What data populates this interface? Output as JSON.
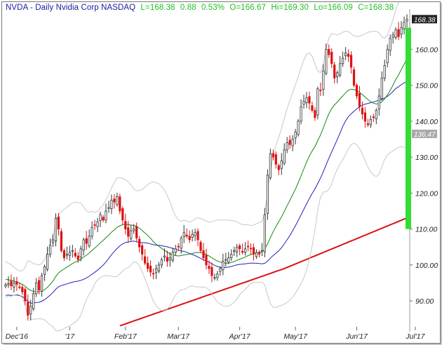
{
  "header": {
    "symbol_line": "NVDA - Daily  Nvidia Corp  NASDAQ",
    "last": "L=168.38",
    "change": "0.88",
    "change_pct": "0.53%",
    "open": "O=166.67",
    "high": "Hi=169.30",
    "low": "Lo=166.09",
    "close": "C=168.38"
  },
  "chart_data": {
    "type": "candlestick",
    "title": "NVDA - Daily  Nvidia Corp  NASDAQ",
    "ylim": [
      83,
      170
    ],
    "y_axis_side": "right",
    "y_ticks": [
      90,
      100,
      110,
      120,
      130,
      140,
      150,
      160
    ],
    "y_tick_labels": [
      "90.00",
      "100.00",
      "110.00",
      "120.00",
      "130.00",
      "140.00",
      "150.00",
      "160.00"
    ],
    "x_tick_labels": [
      "Dec'16",
      "'17",
      "Feb'17",
      "Mar'17",
      "Apr'17",
      "May'17",
      "Jun'17",
      "Jul'17"
    ],
    "x_tick_index": [
      4,
      23,
      43,
      62,
      84,
      104,
      126,
      147
    ],
    "price_tags": [
      {
        "label": "168.38",
        "value": 168.38,
        "style": "dark"
      },
      {
        "label": "136.47",
        "value": 136.47,
        "style": "gray"
      }
    ],
    "volume_bar": {
      "from": 110,
      "to": 166,
      "color": "#33dd33"
    },
    "up_color": "#333333",
    "down_color": "#dd1111",
    "ma_fast_color": "#118811",
    "ma_slow_color": "#2222bb",
    "ma_long_color": "#dd1111",
    "band_color": "#c8c8c8",
    "closes": [
      94.5,
      94.8,
      94.2,
      95.0,
      94.6,
      93.8,
      92.5,
      90.0,
      86.0,
      88.5,
      92.0,
      95.0,
      93.0,
      97.0,
      99.5,
      103.0,
      105.5,
      107.0,
      113.0,
      110.0,
      104.0,
      102.0,
      103.0,
      103.5,
      104.0,
      102.5,
      101.5,
      104.5,
      107.0,
      106.0,
      108.0,
      110.5,
      111.0,
      112.0,
      114.0,
      112.5,
      115.0,
      116.0,
      118.0,
      117.5,
      119.0,
      115.0,
      112.5,
      110.0,
      108.0,
      109.5,
      110.0,
      107.5,
      105.0,
      103.0,
      100.5,
      99.0,
      98.0,
      97.5,
      99.0,
      100.0,
      101.5,
      102.5,
      101.0,
      102.0,
      103.5,
      104.5,
      105.0,
      107.5,
      109.0,
      108.0,
      107.0,
      108.5,
      109.0,
      107.0,
      104.0,
      102.0,
      100.0,
      99.0,
      97.0,
      96.5,
      97.5,
      99.0,
      101.0,
      101.5,
      102.0,
      103.0,
      104.0,
      105.0,
      104.5,
      103.5,
      104.5,
      105.0,
      104.5,
      103.0,
      103.5,
      103.0,
      104.0,
      114.0,
      125.0,
      131.0,
      130.0,
      128.0,
      126.5,
      129.0,
      132.0,
      134.0,
      133.5,
      135.0,
      137.0,
      140.0,
      144.0,
      145.5,
      146.5,
      145.0,
      143.0,
      141.0,
      149.0,
      148.5,
      154.0,
      160.0,
      158.5,
      156.0,
      152.0,
      153.5,
      156.0,
      157.5,
      159.0,
      158.0,
      155.0,
      150.0,
      147.0,
      144.0,
      142.0,
      140.0,
      139.0,
      140.5,
      141.0,
      143.0,
      147.0,
      152.0,
      155.5,
      160.0,
      163.0,
      164.0,
      165.5,
      163.5,
      166.0,
      167.5,
      168.38
    ],
    "ma_fast": [
      96.0,
      95.9,
      95.7,
      95.5,
      95.3,
      95.0,
      94.6,
      94.1,
      93.4,
      92.9,
      92.6,
      92.6,
      92.5,
      92.7,
      93.1,
      93.8,
      94.6,
      95.5,
      96.8,
      97.8,
      98.4,
      98.9,
      99.4,
      99.9,
      100.4,
      100.8,
      101.1,
      101.6,
      102.2,
      102.7,
      103.3,
      104.0,
      104.7,
      105.4,
      106.2,
      106.8,
      107.6,
      108.3,
      109.1,
      109.8,
      110.5,
      110.9,
      111.2,
      111.3,
      111.2,
      111.1,
      111.0,
      110.7,
      110.2,
      109.6,
      108.9,
      108.2,
      107.4,
      106.5,
      105.8,
      105.2,
      104.6,
      104.1,
      103.5,
      103.1,
      102.8,
      102.6,
      102.5,
      102.6,
      102.8,
      102.9,
      103.0,
      103.2,
      103.4,
      103.5,
      103.4,
      103.2,
      102.9,
      102.5,
      102.0,
      101.5,
      101.1,
      100.8,
      100.6,
      100.5,
      100.5,
      100.7,
      100.9,
      101.3,
      101.6,
      101.9,
      102.2,
      102.6,
      102.9,
      103.1,
      103.3,
      103.5,
      103.7,
      104.5,
      105.9,
      107.6,
      109.2,
      110.7,
      112.0,
      113.4,
      114.9,
      116.5,
      118.0,
      119.5,
      121.1,
      122.9,
      124.8,
      126.7,
      128.6,
      130.3,
      131.7,
      132.9,
      134.6,
      136.2,
      138.1,
      140.2,
      142.1,
      143.5,
      144.5,
      145.3,
      146.2,
      147.0,
      147.9,
      148.6,
      148.9,
      148.8,
      148.5,
      148.0,
      147.4,
      146.7,
      146.0,
      145.4,
      145.0,
      144.8,
      144.9,
      145.4,
      146.2,
      147.3,
      148.6,
      150.0,
      151.6,
      152.9,
      154.4,
      155.8,
      157.3
    ]
  }
}
